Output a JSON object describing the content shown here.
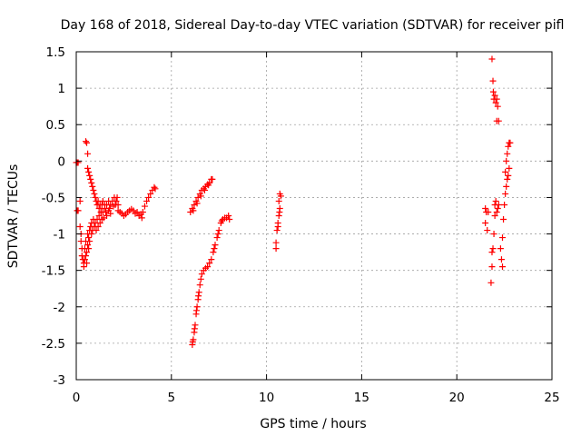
{
  "chart_data": {
    "type": "scatter",
    "title": "Day 168 of 2018, Sidereal Day-to-day VTEC variation (SDTVAR) for receiver pifl",
    "xlabel": "GPS time / hours",
    "ylabel": "SDTVAR / TECUs",
    "xlim": [
      0,
      25
    ],
    "ylim": [
      -3,
      1.5
    ],
    "xticks": [
      0,
      5,
      10,
      15,
      20,
      25
    ],
    "yticks": [
      -3,
      -2.5,
      -2,
      -1.5,
      -1,
      -0.5,
      0,
      0.5,
      1,
      1.5
    ],
    "xtick_labels": [
      "0",
      "5",
      "10",
      "15",
      "20",
      "25"
    ],
    "ytick_labels": [
      "-3",
      "-2.5",
      "-2",
      "-1.5",
      "-1",
      "-0.5",
      "0",
      "0.5",
      "1",
      "1.5"
    ],
    "grid": true,
    "legend": "none",
    "marker": "+",
    "color": "#ff0000",
    "series": [
      {
        "points": [
          [
            0.0,
            -0.02
          ],
          [
            0.05,
            -0.02
          ],
          [
            0.1,
            -0.02
          ],
          [
            0.05,
            -0.68
          ],
          [
            0.1,
            -0.68
          ],
          [
            0.2,
            -0.55
          ],
          [
            0.2,
            -0.9
          ],
          [
            0.25,
            -1.0
          ],
          [
            0.25,
            -1.1
          ],
          [
            0.3,
            -1.2
          ],
          [
            0.3,
            -1.3
          ],
          [
            0.35,
            -1.35
          ],
          [
            0.4,
            -1.4
          ],
          [
            0.4,
            -1.45
          ],
          [
            0.45,
            -1.35
          ],
          [
            0.45,
            -1.2
          ],
          [
            0.5,
            -1.1
          ],
          [
            0.5,
            -1.3
          ],
          [
            0.55,
            -1.4
          ],
          [
            0.55,
            -1.25
          ],
          [
            0.6,
            -1.15
          ],
          [
            0.6,
            -1.0
          ],
          [
            0.65,
            -1.05
          ],
          [
            0.65,
            -1.2
          ],
          [
            0.7,
            -1.1
          ],
          [
            0.7,
            -0.95
          ],
          [
            0.75,
            -0.9
          ],
          [
            0.8,
            -1.0
          ],
          [
            0.8,
            -0.85
          ],
          [
            0.85,
            -0.95
          ],
          [
            0.9,
            -0.8
          ],
          [
            0.95,
            -0.9
          ],
          [
            1.0,
            -0.85
          ],
          [
            1.05,
            -0.95
          ],
          [
            1.1,
            -0.8
          ],
          [
            1.15,
            -0.9
          ],
          [
            1.2,
            -0.75
          ],
          [
            1.25,
            -0.85
          ],
          [
            1.3,
            -0.7
          ],
          [
            1.35,
            -0.8
          ],
          [
            1.4,
            -0.7
          ],
          [
            0.5,
            0.27
          ],
          [
            0.55,
            0.25
          ],
          [
            0.6,
            0.1
          ],
          [
            0.6,
            -0.1
          ],
          [
            0.65,
            -0.15
          ],
          [
            0.7,
            -0.2
          ],
          [
            0.75,
            -0.25
          ],
          [
            0.8,
            -0.3
          ],
          [
            0.85,
            -0.35
          ],
          [
            0.9,
            -0.4
          ],
          [
            0.95,
            -0.45
          ],
          [
            1.0,
            -0.5
          ],
          [
            1.05,
            -0.55
          ],
          [
            1.1,
            -0.6
          ],
          [
            1.15,
            -0.55
          ],
          [
            1.2,
            -0.65
          ],
          [
            1.25,
            -0.6
          ],
          [
            1.3,
            -0.7
          ],
          [
            1.35,
            -0.6
          ],
          [
            1.4,
            -0.55
          ],
          [
            1.5,
            -0.6
          ],
          [
            1.55,
            -0.7
          ],
          [
            1.6,
            -0.6
          ],
          [
            1.7,
            -0.55
          ],
          [
            1.75,
            -0.65
          ],
          [
            1.8,
            -0.6
          ],
          [
            1.9,
            -0.55
          ],
          [
            2.0,
            -0.5
          ],
          [
            2.05,
            -0.6
          ],
          [
            2.1,
            -0.55
          ],
          [
            2.15,
            -0.5
          ],
          [
            2.2,
            -0.6
          ],
          [
            2.3,
            -0.7
          ],
          [
            2.4,
            -0.72
          ],
          [
            2.5,
            -0.75
          ],
          [
            2.6,
            -0.73
          ],
          [
            2.7,
            -0.7
          ],
          [
            2.8,
            -0.68
          ],
          [
            2.9,
            -0.66
          ],
          [
            3.0,
            -0.68
          ],
          [
            3.1,
            -0.72
          ],
          [
            3.2,
            -0.7
          ],
          [
            3.3,
            -0.75
          ],
          [
            3.4,
            -0.73
          ],
          [
            3.5,
            -0.7
          ],
          [
            3.6,
            -0.62
          ],
          [
            3.7,
            -0.55
          ],
          [
            3.8,
            -0.5
          ],
          [
            3.9,
            -0.45
          ],
          [
            4.0,
            -0.4
          ],
          [
            4.1,
            -0.36
          ],
          [
            4.15,
            -0.38
          ],
          [
            1.45,
            -0.78
          ],
          [
            1.5,
            -0.65
          ],
          [
            1.6,
            -0.75
          ],
          [
            1.7,
            -0.68
          ],
          [
            1.8,
            -0.72
          ],
          [
            1.95,
            -0.62
          ],
          [
            2.2,
            -0.68
          ],
          [
            3.45,
            -0.78
          ]
        ]
      },
      {
        "points": [
          [
            6.0,
            -0.7
          ],
          [
            6.1,
            -0.65
          ],
          [
            6.2,
            -0.6
          ],
          [
            6.3,
            -0.55
          ],
          [
            6.4,
            -0.5
          ],
          [
            6.5,
            -0.45
          ],
          [
            6.6,
            -0.4
          ],
          [
            6.7,
            -0.38
          ],
          [
            6.8,
            -0.35
          ],
          [
            6.9,
            -0.32
          ],
          [
            7.0,
            -0.3
          ],
          [
            7.1,
            -0.25
          ],
          [
            7.15,
            -0.25
          ],
          [
            6.15,
            -0.68
          ],
          [
            6.35,
            -0.58
          ],
          [
            6.55,
            -0.48
          ],
          [
            6.75,
            -0.4
          ],
          [
            6.95,
            -0.33
          ]
        ]
      },
      {
        "points": [
          [
            6.1,
            -2.52
          ],
          [
            6.15,
            -2.45
          ],
          [
            6.2,
            -2.35
          ],
          [
            6.25,
            -2.25
          ],
          [
            6.3,
            -2.1
          ],
          [
            6.35,
            -2.0
          ],
          [
            6.4,
            -1.9
          ],
          [
            6.45,
            -1.8
          ],
          [
            6.5,
            -1.7
          ],
          [
            6.55,
            -1.62
          ],
          [
            6.6,
            -1.55
          ],
          [
            6.7,
            -1.5
          ],
          [
            6.8,
            -1.47
          ],
          [
            6.9,
            -1.45
          ],
          [
            7.0,
            -1.4
          ],
          [
            7.1,
            -1.35
          ],
          [
            7.2,
            -1.25
          ],
          [
            7.3,
            -1.15
          ],
          [
            7.4,
            -1.05
          ],
          [
            7.5,
            -0.95
          ],
          [
            7.6,
            -0.85
          ],
          [
            7.7,
            -0.8
          ],
          [
            7.8,
            -0.78
          ],
          [
            7.9,
            -0.78
          ],
          [
            8.0,
            -0.75
          ],
          [
            8.05,
            -0.8
          ],
          [
            6.12,
            -2.48
          ],
          [
            6.22,
            -2.3
          ],
          [
            6.32,
            -2.05
          ],
          [
            6.42,
            -1.85
          ],
          [
            7.25,
            -1.2
          ],
          [
            7.45,
            -1.0
          ],
          [
            7.65,
            -0.82
          ]
        ]
      },
      {
        "points": [
          [
            10.5,
            -1.2
          ],
          [
            10.5,
            -1.12
          ],
          [
            10.55,
            -0.95
          ],
          [
            10.6,
            -0.85
          ],
          [
            10.65,
            -0.75
          ],
          [
            10.7,
            -0.65
          ],
          [
            10.65,
            -0.55
          ],
          [
            10.7,
            -0.45
          ],
          [
            10.75,
            -0.48
          ],
          [
            10.6,
            -0.9
          ],
          [
            10.68,
            -0.7
          ]
        ]
      },
      {
        "points": [
          [
            21.5,
            -0.65
          ],
          [
            21.55,
            -0.7
          ],
          [
            21.5,
            -0.85
          ],
          [
            21.6,
            -0.95
          ],
          [
            21.65,
            -0.7
          ],
          [
            21.8,
            -1.67
          ],
          [
            21.85,
            -1.45
          ],
          [
            21.85,
            -1.25
          ],
          [
            21.9,
            -1.2
          ],
          [
            21.95,
            -1.0
          ],
          [
            22.0,
            -0.75
          ],
          [
            22.0,
            -0.6
          ],
          [
            22.05,
            -0.55
          ],
          [
            22.1,
            -0.7
          ],
          [
            22.15,
            -0.65
          ],
          [
            22.2,
            -0.6
          ],
          [
            21.85,
            1.4
          ],
          [
            21.9,
            1.1
          ],
          [
            21.92,
            0.95
          ],
          [
            21.95,
            0.85
          ],
          [
            22.0,
            0.9
          ],
          [
            22.05,
            0.8
          ],
          [
            22.1,
            0.85
          ],
          [
            22.15,
            0.75
          ],
          [
            22.1,
            0.55
          ],
          [
            22.2,
            0.55
          ],
          [
            22.3,
            -1.2
          ],
          [
            22.35,
            -1.35
          ],
          [
            22.4,
            -1.45
          ],
          [
            22.4,
            -1.05
          ],
          [
            22.45,
            -0.8
          ],
          [
            22.5,
            -0.6
          ],
          [
            22.55,
            -0.45
          ],
          [
            22.6,
            -0.35
          ],
          [
            22.65,
            -0.25
          ],
          [
            22.7,
            -0.2
          ],
          [
            22.75,
            -0.1
          ],
          [
            22.55,
            -0.15
          ],
          [
            22.6,
            0.0
          ],
          [
            22.65,
            0.1
          ],
          [
            22.7,
            0.2
          ],
          [
            22.75,
            0.25
          ],
          [
            22.8,
            0.25
          ]
        ]
      }
    ]
  }
}
